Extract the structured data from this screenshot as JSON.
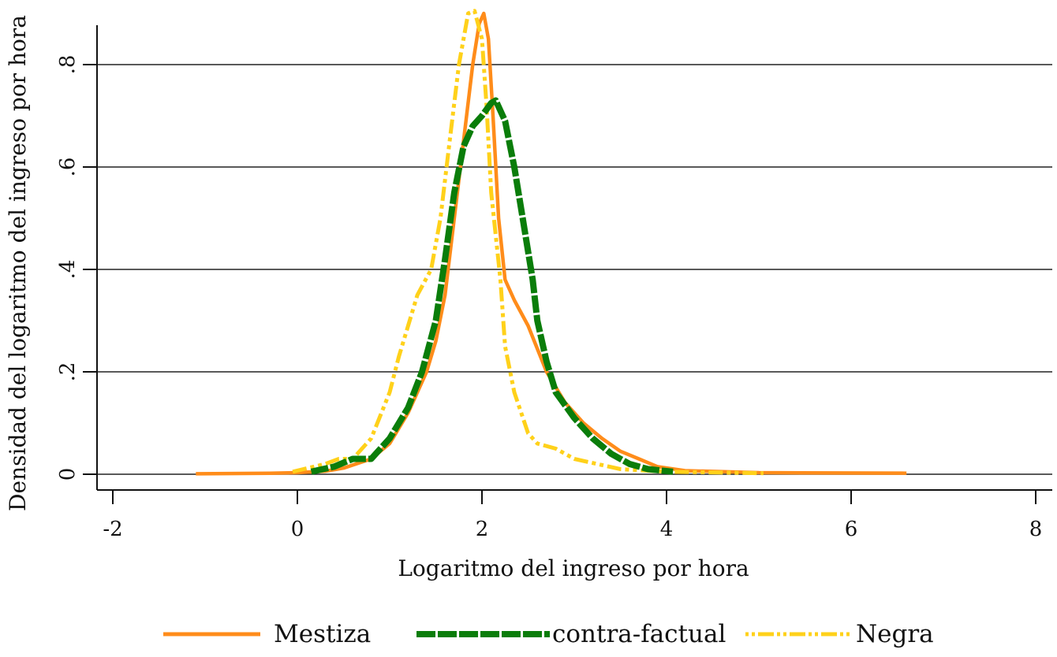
{
  "chart_data": {
    "type": "line",
    "title": "",
    "xlabel": "Logaritmo del ingreso por hora",
    "ylabel": "Densidad del logaritmo del ingreso por hora",
    "xlim": [
      -2.2,
      8.2
    ],
    "ylim": [
      0,
      0.92
    ],
    "x_ticks": [
      -2,
      0,
      2,
      4,
      6,
      8
    ],
    "x_tick_labels": [
      "-2",
      "0",
      "2",
      "4",
      "6",
      "8"
    ],
    "y_ticks": [
      0,
      0.2,
      0.4,
      0.6,
      0.8
    ],
    "y_tick_labels": [
      "0",
      ".2",
      ".4",
      ".6",
      ".8"
    ],
    "grid": "horizontal",
    "legend_position": "bottom",
    "series": [
      {
        "name": "Mestiza",
        "color": "#ff8c1a",
        "style": "solid",
        "x": [
          -1.1,
          -0.3,
          0.0,
          0.3,
          0.5,
          0.8,
          1.0,
          1.2,
          1.4,
          1.5,
          1.6,
          1.7,
          1.8,
          1.9,
          1.97,
          2.02,
          2.07,
          2.12,
          2.18,
          2.25,
          2.35,
          2.5,
          2.7,
          2.9,
          3.1,
          3.3,
          3.5,
          3.7,
          3.9,
          4.2,
          5.0,
          6.6
        ],
        "y": [
          0.001,
          0.002,
          0.003,
          0.006,
          0.012,
          0.03,
          0.06,
          0.12,
          0.2,
          0.26,
          0.35,
          0.5,
          0.65,
          0.8,
          0.88,
          0.9,
          0.85,
          0.7,
          0.5,
          0.38,
          0.34,
          0.29,
          0.2,
          0.14,
          0.1,
          0.07,
          0.045,
          0.03,
          0.015,
          0.007,
          0.003,
          0.002
        ]
      },
      {
        "name": "contra-factual",
        "color": "#0a7d0a",
        "style": "dashed",
        "x": [
          0.15,
          0.4,
          0.6,
          0.8,
          1.0,
          1.2,
          1.35,
          1.5,
          1.6,
          1.7,
          1.8,
          1.9,
          2.0,
          2.1,
          2.15,
          2.25,
          2.35,
          2.45,
          2.55,
          2.6,
          2.7,
          2.8,
          3.0,
          3.2,
          3.4,
          3.6,
          3.8,
          4.07
        ],
        "y": [
          0.005,
          0.015,
          0.03,
          0.03,
          0.07,
          0.13,
          0.2,
          0.3,
          0.42,
          0.55,
          0.64,
          0.68,
          0.7,
          0.725,
          0.73,
          0.69,
          0.6,
          0.49,
          0.38,
          0.3,
          0.22,
          0.16,
          0.11,
          0.07,
          0.04,
          0.02,
          0.01,
          0.005
        ]
      },
      {
        "name": "Negra",
        "color": "#ffd11a",
        "style": "dash-dot-dot",
        "x": [
          -0.05,
          0.3,
          0.45,
          0.6,
          0.8,
          1.0,
          1.1,
          1.3,
          1.45,
          1.55,
          1.65,
          1.75,
          1.85,
          1.92,
          2.0,
          2.05,
          2.1,
          2.2,
          2.25,
          2.35,
          2.5,
          2.6,
          2.8,
          3.0,
          3.5,
          4.0,
          5.05
        ],
        "y": [
          0.005,
          0.02,
          0.03,
          0.03,
          0.07,
          0.16,
          0.23,
          0.35,
          0.4,
          0.5,
          0.65,
          0.8,
          0.9,
          0.905,
          0.85,
          0.72,
          0.55,
          0.38,
          0.25,
          0.16,
          0.08,
          0.06,
          0.05,
          0.03,
          0.01,
          0.005,
          0.002
        ]
      }
    ]
  },
  "legend": {
    "items": [
      {
        "label": "Mestiza"
      },
      {
        "label": "contra-factual"
      },
      {
        "label": "Negra"
      }
    ]
  }
}
